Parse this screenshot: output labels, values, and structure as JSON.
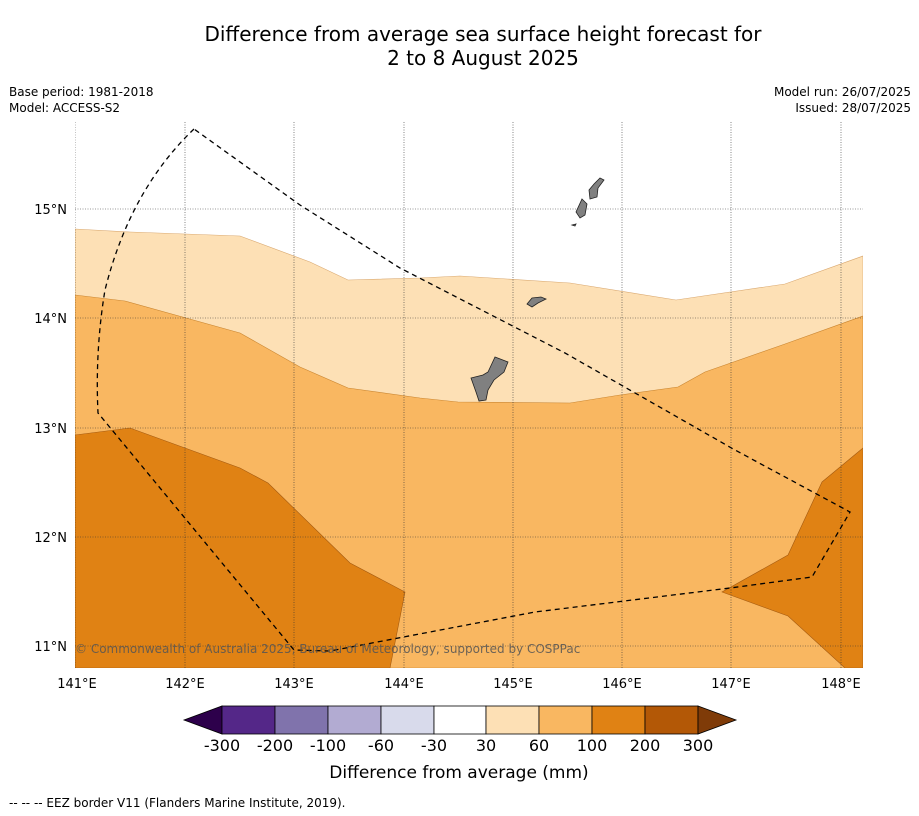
{
  "title_line1": "Difference from average sea surface height forecast for",
  "title_line2": "2 to 8 August 2025",
  "meta_left": {
    "base_period": "Base period: 1981-2018",
    "model": "Model: ACCESS-S2"
  },
  "meta_right": {
    "model_run": "Model run: 26/07/2025",
    "issued": "Issued: 28/07/2025"
  },
  "map": {
    "lon_range": [
      141,
      148.2
    ],
    "lat_range": [
      10.8,
      15.8
    ],
    "lon_ticks": [
      "141°E",
      "142°E",
      "143°E",
      "144°E",
      "145°E",
      "146°E",
      "147°E",
      "148°E"
    ],
    "lat_ticks": [
      "11°N",
      "12°N",
      "13°N",
      "14°N",
      "15°N"
    ],
    "gridlines": true,
    "colors": {
      "band_30_60": "#fde0b5",
      "band_60_100": "#f9b761",
      "band_100_200": "#e08214",
      "land": "#808080"
    },
    "eez_border": "dashed"
  },
  "copyright": "© Commonwealth of Australia 2025, Bureau of Meteorology, supported by COSPPac",
  "colorbar": {
    "title": "Difference from average (mm)",
    "ticks": [
      "-300",
      "-200",
      "-100",
      "-60",
      "-30",
      "30",
      "60",
      "100",
      "200",
      "300"
    ],
    "colors": [
      "#2d004b",
      "#542788",
      "#8073ac",
      "#b2abd2",
      "#d8daeb",
      "#ffffff",
      "#fde0b5",
      "#f9b761",
      "#e08214",
      "#b35806",
      "#7f3b08"
    ]
  },
  "footer": "--  --  -- EEZ border V11 (Flanders Marine Institute, 2019)."
}
